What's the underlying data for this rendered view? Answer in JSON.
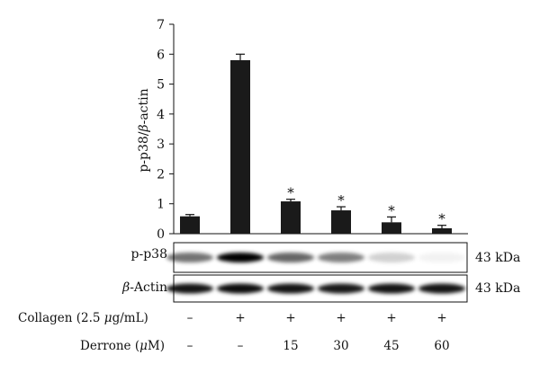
{
  "chart_data": {
    "type": "bar",
    "title": "",
    "xlabel": "",
    "ylabel_prefix": "p-p38/",
    "ylabel_beta": "β",
    "ylabel_suffix": "-actin",
    "ylim": [
      0,
      7
    ],
    "yticks": [
      "0",
      "1",
      "2",
      "3",
      "4",
      "5",
      "6",
      "7"
    ],
    "values": [
      0.58,
      5.8,
      1.08,
      0.78,
      0.38,
      0.18
    ],
    "errors": [
      0.06,
      0.2,
      0.07,
      0.12,
      0.18,
      0.1
    ],
    "significance": [
      "",
      "",
      "*",
      "*",
      "*",
      "*"
    ],
    "bar_color": "#1a1a1a",
    "blots": [
      {
        "label": "p-p38",
        "size": "43 kDa",
        "intensity": [
          0.55,
          1.0,
          0.6,
          0.5,
          0.18,
          0.05
        ]
      },
      {
        "label_beta": "β",
        "label_suffix": "-Actin",
        "size": "43 kDa",
        "intensity": [
          0.92,
          0.95,
          0.92,
          0.9,
          0.92,
          0.92
        ]
      }
    ],
    "treatments": [
      {
        "name_prefix": "Collagen (2.5 ",
        "name_mu": "μ",
        "name_suffix": "g/mL)",
        "values": [
          "–",
          "+",
          "+",
          "+",
          "+",
          "+"
        ]
      },
      {
        "name_prefix": "Derrone (",
        "name_mu": "μ",
        "name_suffix": "M)",
        "values": [
          "–",
          "–",
          "15",
          "30",
          "45",
          "60"
        ]
      }
    ]
  }
}
